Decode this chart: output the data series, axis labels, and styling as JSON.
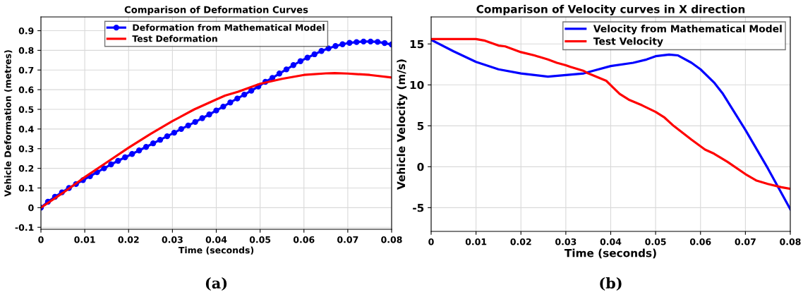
{
  "chart_data": [
    {
      "type": "line",
      "title": "Comparison of Deformation Curves",
      "xlabel": "Time (seconds)",
      "ylabel": "Vehicle Deformation (metres)",
      "annotations": [
        "(a)"
      ],
      "xlim": [
        0,
        0.08
      ],
      "xticks": [
        0,
        0.01,
        0.02,
        0.03,
        0.04,
        0.05,
        0.06,
        0.07,
        0.08
      ],
      "ylim": [
        -0.11,
        0.97
      ],
      "yticks": [
        -0.1,
        0,
        0.1,
        0.2,
        0.3,
        0.4,
        0.5,
        0.6,
        0.7,
        0.8,
        0.9
      ],
      "grid": true,
      "legend": "top",
      "series": [
        {
          "name": "Deformation from Mathematical Model",
          "color": "#0000ff",
          "marker": "circle",
          "x": [
            0,
            0.0016,
            0.0032,
            0.0048,
            0.0064,
            0.008,
            0.0096,
            0.0112,
            0.0128,
            0.0144,
            0.016,
            0.0176,
            0.0192,
            0.0208,
            0.0224,
            0.024,
            0.0256,
            0.0272,
            0.0288,
            0.0304,
            0.032,
            0.0336,
            0.0352,
            0.0368,
            0.0384,
            0.04,
            0.0416,
            0.0432,
            0.0448,
            0.0464,
            0.048,
            0.0496,
            0.0512,
            0.0528,
            0.0544,
            0.056,
            0.0576,
            0.0592,
            0.0608,
            0.0624,
            0.064,
            0.0656,
            0.0672,
            0.0688,
            0.0704,
            0.072,
            0.0736,
            0.0752,
            0.0768,
            0.0784,
            0.08
          ],
          "values": [
            0,
            0.03,
            0.055,
            0.078,
            0.1,
            0.12,
            0.14,
            0.16,
            0.18,
            0.2,
            0.22,
            0.238,
            0.256,
            0.273,
            0.291,
            0.309,
            0.327,
            0.345,
            0.363,
            0.381,
            0.4,
            0.418,
            0.436,
            0.455,
            0.474,
            0.494,
            0.514,
            0.535,
            0.555,
            0.575,
            0.595,
            0.616,
            0.64,
            0.66,
            0.682,
            0.703,
            0.725,
            0.745,
            0.763,
            0.78,
            0.797,
            0.81,
            0.822,
            0.831,
            0.838,
            0.842,
            0.845,
            0.845,
            0.843,
            0.837,
            0.83
          ]
        },
        {
          "name": "Test Deformation",
          "color": "#ff0000",
          "marker": "none",
          "x": [
            0,
            0.005,
            0.01,
            0.015,
            0.02,
            0.025,
            0.03,
            0.035,
            0.04,
            0.042,
            0.045,
            0.05,
            0.055,
            0.06,
            0.065,
            0.067,
            0.07,
            0.075,
            0.08
          ],
          "values": [
            0,
            0.075,
            0.155,
            0.23,
            0.305,
            0.375,
            0.44,
            0.5,
            0.55,
            0.57,
            0.59,
            0.63,
            0.655,
            0.675,
            0.683,
            0.684,
            0.682,
            0.675,
            0.662
          ]
        }
      ]
    },
    {
      "type": "line",
      "title": "Comparison of Velocity curves in X direction",
      "xlabel": "Time (seconds)",
      "ylabel": "Vehicle Velocity (m/s)",
      "annotations": [
        "(b)"
      ],
      "xlim": [
        0,
        0.08
      ],
      "xticks": [
        0,
        0.01,
        0.02,
        0.03,
        0.04,
        0.05,
        0.06,
        0.07,
        0.08
      ],
      "ylim": [
        -7.9,
        18.3
      ],
      "yticks": [
        -5,
        0,
        5,
        10,
        15
      ],
      "grid": true,
      "legend": "top right",
      "series": [
        {
          "name": "Velocity from Mathematical Model",
          "color": "#0000ff",
          "marker": "none",
          "x": [
            0,
            0.005,
            0.01,
            0.015,
            0.02,
            0.026,
            0.03,
            0.034,
            0.036,
            0.04,
            0.045,
            0.048,
            0.05,
            0.053,
            0.055,
            0.058,
            0.06,
            0.063,
            0.065,
            0.07,
            0.075,
            0.08
          ],
          "values": [
            15.5,
            14.1,
            12.8,
            11.9,
            11.4,
            11.0,
            11.2,
            11.4,
            11.7,
            12.3,
            12.7,
            13.1,
            13.5,
            13.7,
            13.6,
            12.7,
            11.9,
            10.3,
            8.9,
            4.5,
            -0.2,
            -5.2
          ]
        },
        {
          "name": "Test Velocity",
          "color": "#ff0000",
          "marker": "none",
          "x": [
            0,
            0.005,
            0.01,
            0.012,
            0.015,
            0.0165,
            0.02,
            0.023,
            0.026,
            0.028,
            0.03,
            0.031,
            0.034,
            0.035,
            0.039,
            0.0405,
            0.042,
            0.044,
            0.047,
            0.05,
            0.052,
            0.054,
            0.058,
            0.061,
            0.063,
            0.066,
            0.07,
            0.0725,
            0.075,
            0.078,
            0.08
          ],
          "values": [
            15.6,
            15.6,
            15.6,
            15.4,
            14.8,
            14.7,
            14.0,
            13.6,
            13.1,
            12.7,
            12.4,
            12.2,
            11.7,
            11.4,
            10.5,
            9.7,
            8.9,
            8.2,
            7.5,
            6.7,
            6.0,
            5.0,
            3.3,
            2.1,
            1.6,
            0.6,
            -0.9,
            -1.7,
            -2.1,
            -2.5,
            -2.7
          ]
        }
      ]
    }
  ]
}
